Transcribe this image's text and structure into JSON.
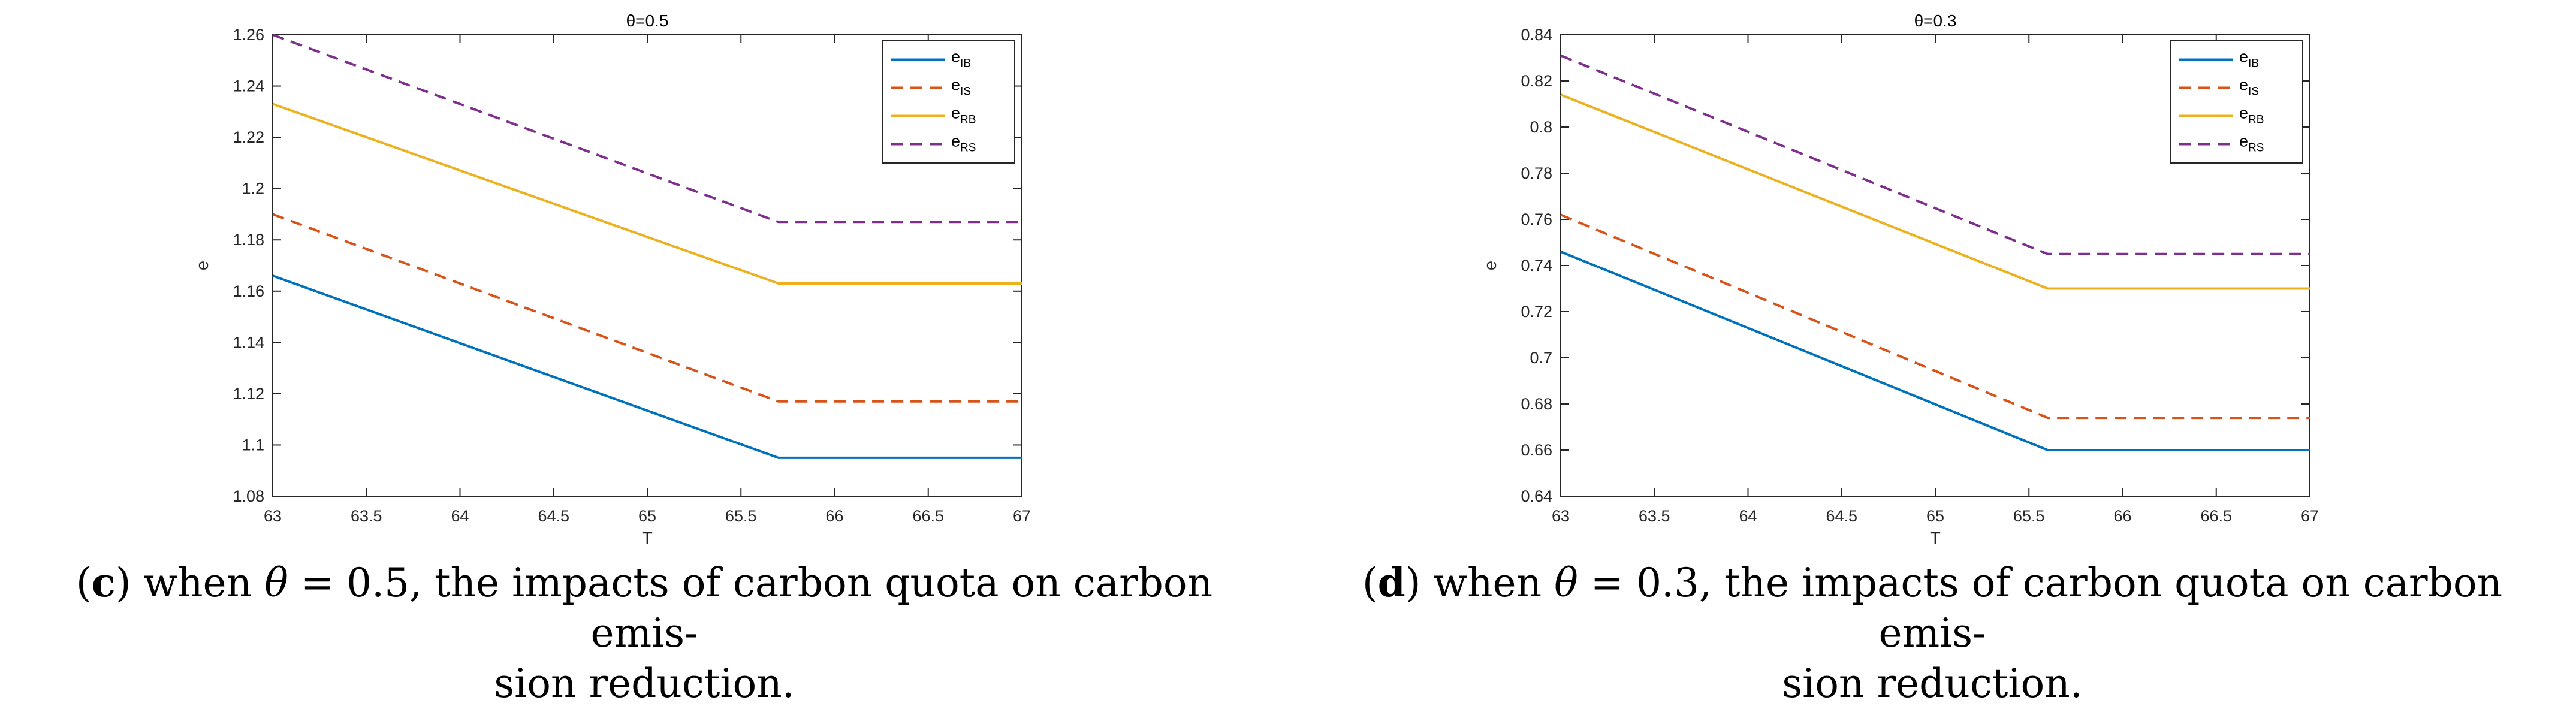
{
  "chart_data": [
    {
      "type": "line",
      "title": "θ=0.5",
      "xlabel": "T",
      "ylabel": "e",
      "xlim": [
        63,
        67
      ],
      "ylim": [
        1.08,
        1.26
      ],
      "xticks": [
        "63",
        "63.5",
        "64",
        "64.5",
        "65",
        "65.5",
        "66",
        "66.5",
        "67"
      ],
      "yticks": [
        "1.08",
        "1.1",
        "1.12",
        "1.14",
        "1.16",
        "1.18",
        "1.2",
        "1.22",
        "1.24",
        "1.26"
      ],
      "legend_placement": "top-right",
      "grid": false,
      "series": [
        {
          "name": "e_IB",
          "legend_main": "e",
          "legend_sub": "IB",
          "color": "#0072BD",
          "dash": "solid",
          "x": [
            63,
            65.7,
            67
          ],
          "y": [
            1.166,
            1.095,
            1.095
          ]
        },
        {
          "name": "e_IS",
          "legend_main": "e",
          "legend_sub": "IS",
          "color": "#D95319",
          "dash": "dashed",
          "x": [
            63,
            65.7,
            67
          ],
          "y": [
            1.19,
            1.117,
            1.117
          ]
        },
        {
          "name": "e_RB",
          "legend_main": "e",
          "legend_sub": "RB",
          "color": "#EDB120",
          "dash": "solid",
          "x": [
            63,
            65.7,
            67
          ],
          "y": [
            1.233,
            1.163,
            1.163
          ]
        },
        {
          "name": "e_RS",
          "legend_main": "e",
          "legend_sub": "RS",
          "color": "#7E2F8E",
          "dash": "dashed",
          "x": [
            63,
            65.7,
            67
          ],
          "y": [
            1.26,
            1.187,
            1.187
          ]
        }
      ]
    },
    {
      "type": "line",
      "title": "θ=0.3",
      "xlabel": "T",
      "ylabel": "e",
      "xlim": [
        63,
        67
      ],
      "ylim": [
        0.64,
        0.84
      ],
      "xticks": [
        "63",
        "63.5",
        "64",
        "64.5",
        "65",
        "65.5",
        "66",
        "66.5",
        "67"
      ],
      "yticks": [
        "0.64",
        "0.66",
        "0.68",
        "0.7",
        "0.72",
        "0.74",
        "0.76",
        "0.78",
        "0.8",
        "0.82",
        "0.84"
      ],
      "legend_placement": "top-right",
      "grid": false,
      "series": [
        {
          "name": "e_IB",
          "legend_main": "e",
          "legend_sub": "IB",
          "color": "#0072BD",
          "dash": "solid",
          "x": [
            63,
            65.6,
            67
          ],
          "y": [
            0.746,
            0.66,
            0.66
          ]
        },
        {
          "name": "e_IS",
          "legend_main": "e",
          "legend_sub": "IS",
          "color": "#D95319",
          "dash": "dashed",
          "x": [
            63,
            65.6,
            67
          ],
          "y": [
            0.762,
            0.674,
            0.674
          ]
        },
        {
          "name": "e_RB",
          "legend_main": "e",
          "legend_sub": "RB",
          "color": "#EDB120",
          "dash": "solid",
          "x": [
            63,
            65.6,
            67
          ],
          "y": [
            0.814,
            0.73,
            0.73
          ]
        },
        {
          "name": "e_RS",
          "legend_main": "e",
          "legend_sub": "RS",
          "color": "#7E2F8E",
          "dash": "dashed",
          "x": [
            63,
            65.6,
            67
          ],
          "y": [
            0.831,
            0.745,
            0.745
          ]
        }
      ]
    }
  ],
  "captions": [
    {
      "letter": "c",
      "line1_pre": " when  ",
      "symbol": "θ",
      "line1_post": " = 0.5, the impacts of carbon quota on carbon emis-",
      "line2": "sion reduction."
    },
    {
      "letter": "d",
      "line1_pre": " when  ",
      "symbol": "θ",
      "line1_post": " = 0.3, the impacts of carbon quota on carbon emis-",
      "line2": "sion reduction."
    }
  ]
}
